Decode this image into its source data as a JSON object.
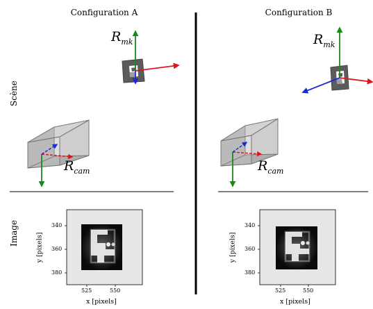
{
  "columns": [
    {
      "title": "Configuration A"
    },
    {
      "title": "Configuration B"
    }
  ],
  "rows": {
    "scene": "Scène",
    "image": "Image"
  },
  "frames": {
    "marker": {
      "symbol": "R",
      "subscript": "mk"
    },
    "camera": {
      "symbol": "R",
      "subscript": "cam"
    }
  },
  "image_axes": {
    "xlabel": "x [pixels]",
    "ylabel": "y [pixels]",
    "xticks": [
      "525",
      "550"
    ],
    "yticks": [
      "340",
      "360",
      "380"
    ]
  },
  "colors": {
    "x_axis": "#e0161e",
    "y_axis": "#1a8a1a",
    "z_axis": "#1a2ad8",
    "divider": "#000000",
    "marker_frame": "#555555"
  }
}
